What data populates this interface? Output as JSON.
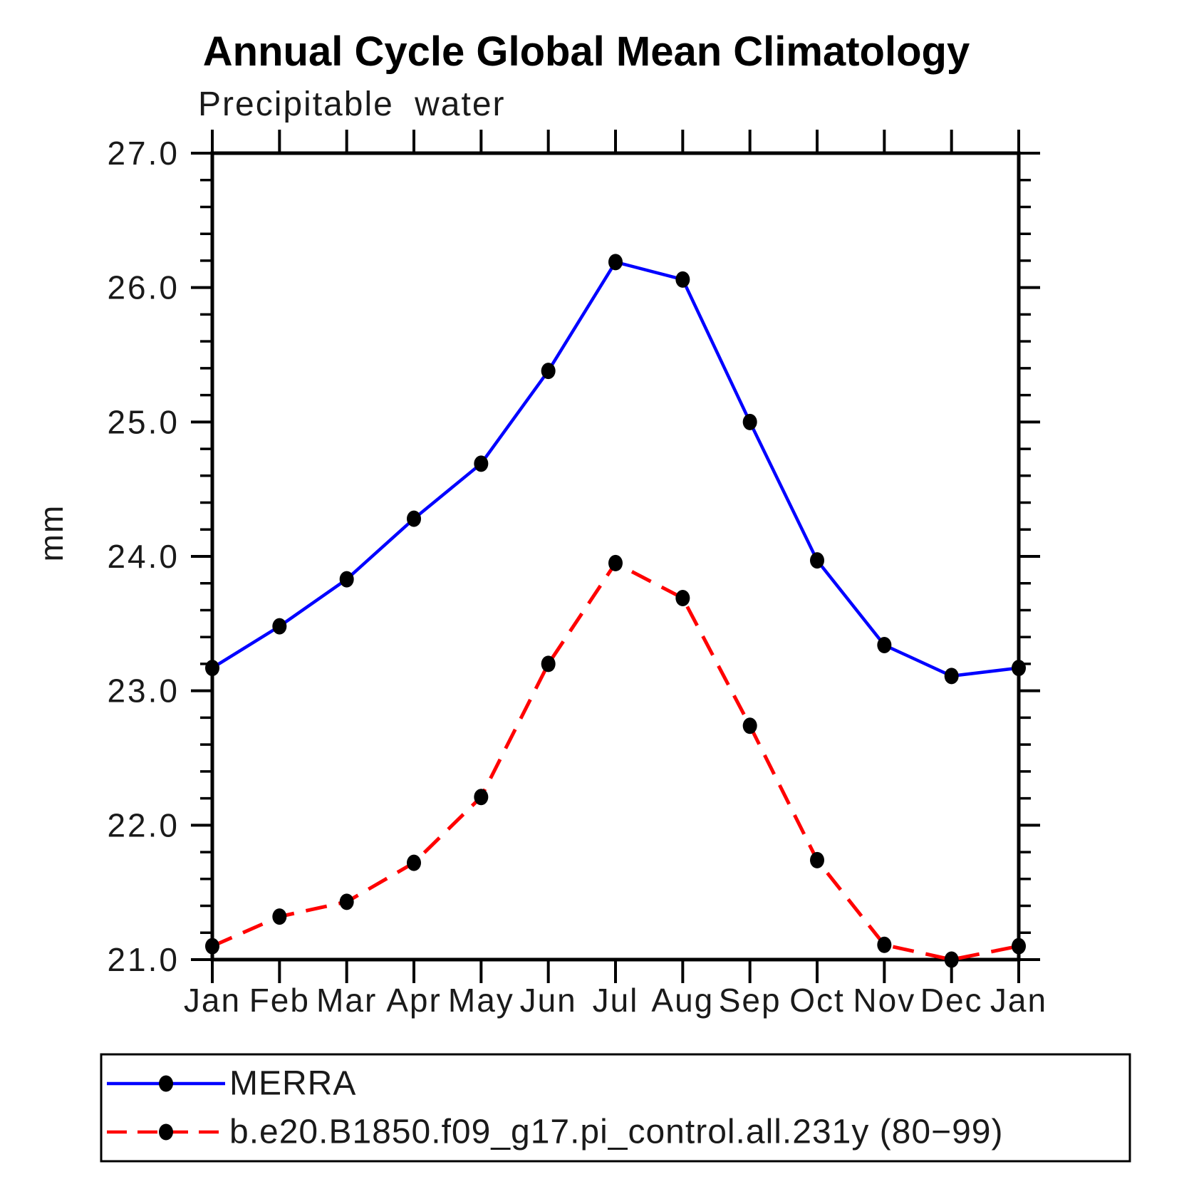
{
  "page": {
    "background_color": "#ffffff",
    "axis_color": "#000000",
    "text_color": "#1a1a1a"
  },
  "chart_data": {
    "type": "line",
    "title": "Annual Cycle Global Mean Climatology",
    "subtitle": "Precipitable water",
    "ylabel": "mm",
    "xlabel": "",
    "ylim": [
      21.0,
      27.0
    ],
    "y_major_step": 1.0,
    "y_minor_step": 0.2,
    "y_tick_labels": [
      "21.0",
      "22.0",
      "23.0",
      "24.0",
      "25.0",
      "26.0",
      "27.0"
    ],
    "x_tick_labels": [
      "Jan",
      "Feb",
      "Mar",
      "Apr",
      "May",
      "Jun",
      "Jul",
      "Aug",
      "Sep",
      "Oct",
      "Nov",
      "Dec",
      "Jan"
    ],
    "grid": false,
    "legend_position": "bottom-left",
    "series": [
      {
        "name": "MERRA",
        "color": "#0000ff",
        "line_style": "solid",
        "marker": "circle",
        "marker_color": "#000000",
        "values": [
          23.17,
          23.48,
          23.83,
          24.28,
          24.69,
          25.38,
          26.19,
          26.06,
          25.0,
          23.97,
          23.34,
          23.11,
          23.17
        ]
      },
      {
        "name": "b.e20.B1850.f09_g17.pi_control.all.231y (80−99)",
        "color": "#ff0000",
        "line_style": "dashed",
        "marker": "circle",
        "marker_color": "#000000",
        "values": [
          21.1,
          21.32,
          21.43,
          21.72,
          22.21,
          23.2,
          23.95,
          23.69,
          22.74,
          21.74,
          21.11,
          21.0,
          21.1
        ]
      }
    ]
  }
}
